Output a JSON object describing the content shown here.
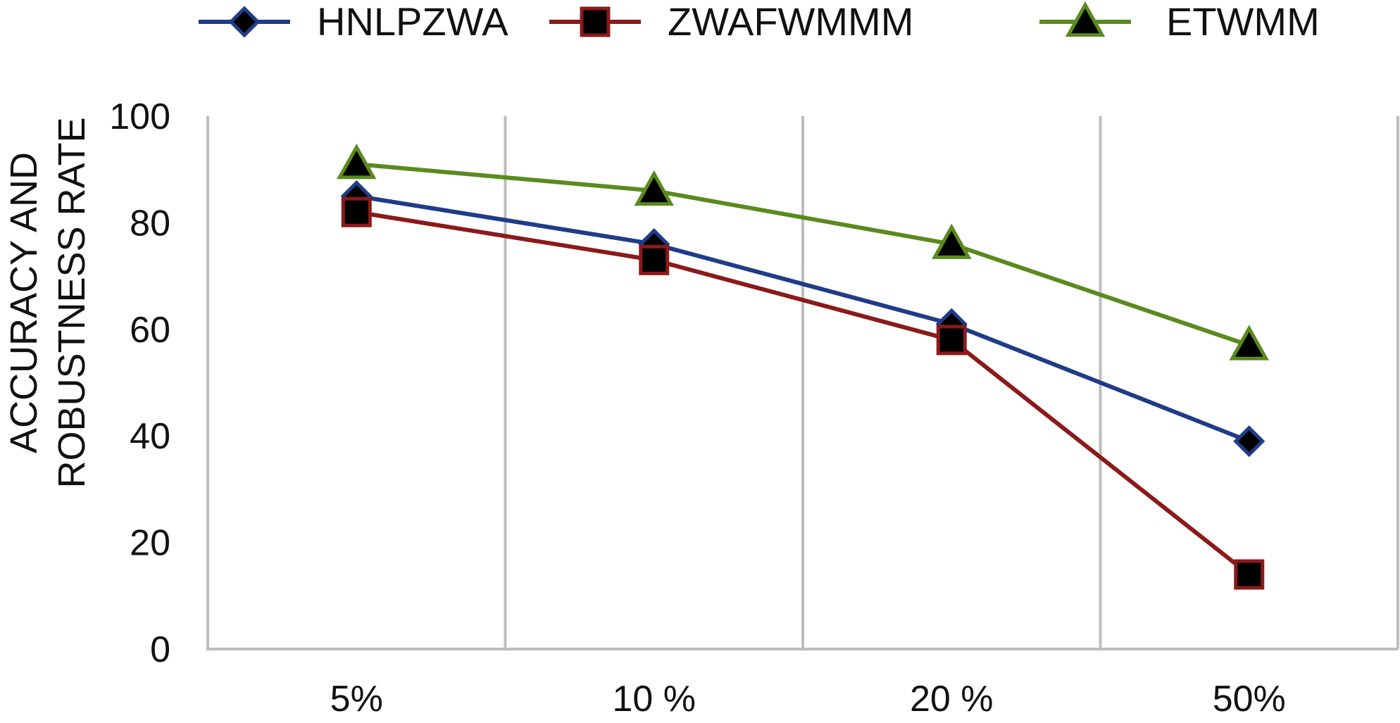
{
  "chart_data": {
    "type": "line",
    "categories": [
      "5%",
      "10 %",
      "20 %",
      "50%"
    ],
    "ylabel_lines": [
      "ACCURACY AND",
      "ROBUSTNESS RATE"
    ],
    "xlabel": "",
    "ylim": [
      0,
      100
    ],
    "yticks": [
      0,
      20,
      40,
      60,
      80,
      100
    ],
    "grid": "vertical",
    "legend_position": "top",
    "series": [
      {
        "name": "HNLPZWA",
        "values": [
          85,
          76,
          61,
          39
        ],
        "color": "#1f3c88",
        "marker": "diamond"
      },
      {
        "name": "ZWAFWMMM",
        "values": [
          82,
          73,
          58,
          14
        ],
        "color": "#8b1a1a",
        "marker": "square"
      },
      {
        "name": "ETWMM",
        "values": [
          91,
          86,
          76,
          57
        ],
        "color": "#5a8a1e",
        "marker": "triangle"
      }
    ]
  }
}
